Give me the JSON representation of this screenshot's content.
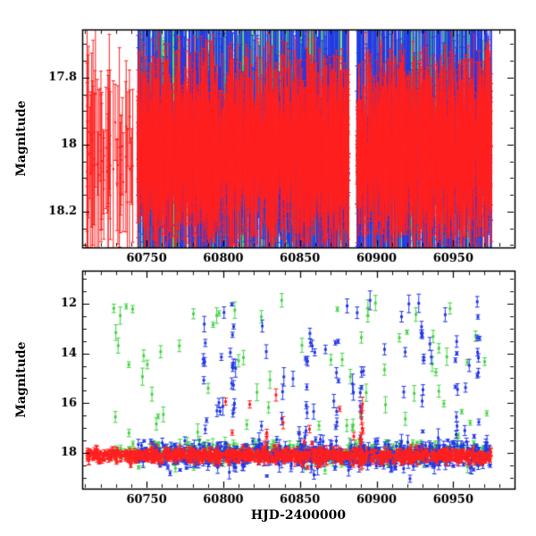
{
  "colors": {
    "red": "#ff2020",
    "green": "#44d544",
    "blue": "#2438e8",
    "frame": "#000000",
    "background": "#ffffff"
  },
  "chart_data": [
    {
      "type": "scatter",
      "panel": "top",
      "title": "",
      "xlabel": "",
      "ylabel": "Magnitude",
      "x_range": [
        60708,
        60990
      ],
      "y_range": [
        17.656,
        18.307
      ],
      "y_inverted": true,
      "xticks": [
        60750,
        60800,
        60850,
        60900,
        60950
      ],
      "xtick_labels": [
        "60750",
        "60800",
        "60850",
        "60900",
        "60950"
      ],
      "yticks": [
        17.8,
        18.0,
        18.2
      ],
      "ytick_labels": [
        "17.8",
        "18",
        "18.2"
      ],
      "x_minor_step": 10,
      "y_minor_step": 0.05,
      "show_x_tick_labels": true,
      "gaps": [
        [
          60882,
          60887
        ]
      ],
      "series": [
        {
          "name": "green-band",
          "color": "green",
          "marker_size": 2.2,
          "segments": [
            {
              "n": 900,
              "x": [
                60744,
                60974
              ],
              "mag_base": 18.0,
              "mag_sigma": 0.09,
              "err": [
                0.05,
                0.85
              ],
              "err_pow": 2.2
            }
          ]
        },
        {
          "name": "blue-band",
          "color": "blue",
          "marker_size": 2.2,
          "segments": [
            {
              "n": 1500,
              "x": [
                60744,
                60975
              ],
              "mag_base": 18.02,
              "mag_sigma": 0.1,
              "err": [
                0.05,
                0.8
              ],
              "err_pow": 2.2
            }
          ]
        },
        {
          "name": "red-band",
          "color": "red",
          "marker_size": 2.2,
          "segments": [
            {
              "n": 60,
              "x": [
                60711,
                60741
              ],
              "mag_base": 18.05,
              "mag_sigma": 0.06,
              "err": [
                0.06,
                0.3
              ],
              "err_pow": 1
            },
            {
              "n": 3000,
              "x": [
                60744,
                60975
              ],
              "mag_base": 18.02,
              "mag_sigma": 0.05,
              "err": [
                0.03,
                0.28
              ],
              "err_pow": 2
            }
          ]
        }
      ]
    },
    {
      "type": "scatter",
      "panel": "bottom",
      "title": "",
      "xlabel": "HJD-2400000",
      "ylabel": "Magnitude",
      "x_range": [
        60708,
        60990
      ],
      "y_range": [
        10.67,
        19.44
      ],
      "y_inverted": true,
      "xticks": [
        60750,
        60800,
        60850,
        60900,
        60950
      ],
      "xtick_labels": [
        "60750",
        "60800",
        "60850",
        "60900",
        "60950"
      ],
      "yticks": [
        12,
        14,
        16,
        18
      ],
      "ytick_labels": [
        "12",
        "14",
        "16",
        "18"
      ],
      "x_minor_step": 10,
      "y_minor_step": 0.5,
      "show_x_tick_labels": true,
      "gaps": [],
      "series": [
        {
          "name": "green-band",
          "color": "green",
          "marker_size": 3,
          "segments": [
            {
              "n": 450,
              "x": [
                60726,
                60974
              ],
              "mag_base": 18.0,
              "mag_sigma": 0.2,
              "err": [
                0.04,
                0.25
              ],
              "err_pow": 1.5
            },
            {
              "n": 70,
              "x": [
                60726,
                60974
              ],
              "mag_uniform": [
                11.85,
                17.3
              ],
              "err": [
                0.08,
                0.35
              ],
              "err_pow": 1
            }
          ]
        },
        {
          "name": "blue-band",
          "color": "blue",
          "marker_size": 3,
          "segments": [
            {
              "n": 650,
              "x": [
                60744,
                60975
              ],
              "mag_base": 18.1,
              "mag_sigma": 0.25,
              "err": [
                0.04,
                0.3
              ],
              "err_pow": 1.5
            },
            {
              "n": 45,
              "x": [
                60778,
                60973
              ],
              "mag_uniform": [
                11.7,
                17.6
              ],
              "err": [
                0.08,
                0.4
              ],
              "err_pow": 1
            }
          ],
          "flares": [
            {
              "x": 60788,
              "n": 8,
              "mag": [
                13.5,
                17.8
              ]
            },
            {
              "x": 60806,
              "n": 12,
              "mag": [
                11.8,
                17.8
              ]
            },
            {
              "x": 60854,
              "n": 8,
              "mag": [
                13.8,
                17.8
              ]
            },
            {
              "x": 60874,
              "n": 8,
              "mag": [
                13.0,
                17.8
              ]
            },
            {
              "x": 60890,
              "n": 10,
              "mag": [
                14.0,
                18.2
              ]
            },
            {
              "x": 60930,
              "n": 10,
              "mag": [
                12.2,
                17.8
              ]
            },
            {
              "x": 60952,
              "n": 8,
              "mag": [
                13.0,
                17.8
              ]
            },
            {
              "x": 60966,
              "n": 10,
              "mag": [
                11.9,
                17.8
              ]
            }
          ]
        },
        {
          "name": "red-band",
          "color": "red",
          "marker_size": 3,
          "segments": [
            {
              "n": 1000,
              "x": [
                60711,
                60975
              ],
              "mag_base": 18.12,
              "mag_sigma": 0.13,
              "err": [
                0.02,
                0.2
              ],
              "err_pow": 2
            },
            {
              "n": 10,
              "x": [
                60800,
                60942
              ],
              "mag_uniform": [
                15.6,
                17.6
              ],
              "err": [
                0.1,
                0.3
              ],
              "err_pow": 1
            }
          ],
          "flares": [
            {
              "x": 60890,
              "n": 16,
              "mag": [
                16.2,
                18.5
              ]
            },
            {
              "x": 60828,
              "n": 5,
              "mag": [
                17.0,
                18.3
              ]
            }
          ]
        }
      ]
    }
  ],
  "seed": 20240611
}
